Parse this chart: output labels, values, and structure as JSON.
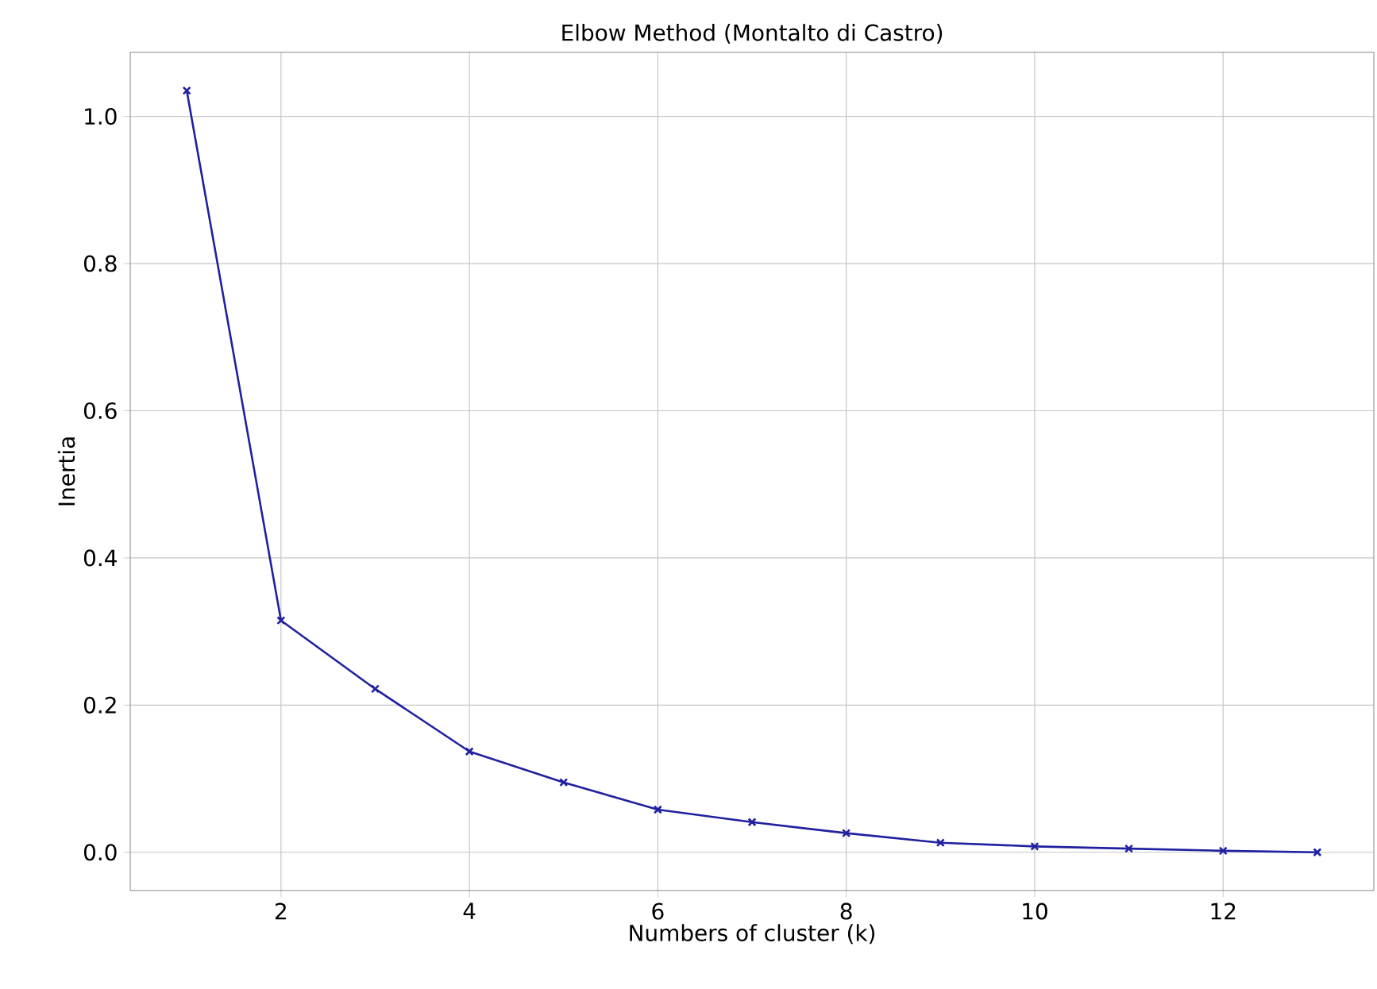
{
  "chart_data": {
    "type": "line",
    "title": "Elbow Method (Montalto di Castro)",
    "xlabel": "Numbers of cluster (k)",
    "ylabel": "Inertia",
    "x": [
      1,
      2,
      3,
      4,
      5,
      6,
      7,
      8,
      9,
      10,
      11,
      12,
      13
    ],
    "series": [
      {
        "color": "#2020a0",
        "values": [
          1.035,
          0.315,
          0.222,
          0.137,
          0.095,
          0.058,
          0.041,
          0.026,
          0.013,
          0.008,
          0.005,
          0.002,
          0.0
        ]
      }
    ],
    "xlim": [
      0.4,
      13.6
    ],
    "ylim": [
      -0.052,
      1.087
    ],
    "xticks": [
      2,
      4,
      6,
      8,
      10,
      12
    ],
    "yticks": [
      {
        "value": 0,
        "label": "0.0"
      },
      {
        "value": 0.2,
        "label": "0.2"
      },
      {
        "value": 0.4,
        "label": "0.4"
      },
      {
        "value": 0.6,
        "label": "0.6"
      },
      {
        "value": 0.8,
        "label": "0.8"
      },
      {
        "value": 1.0,
        "label": "1.0"
      }
    ],
    "grid": true,
    "marker": "cross",
    "line_style": "solid"
  }
}
